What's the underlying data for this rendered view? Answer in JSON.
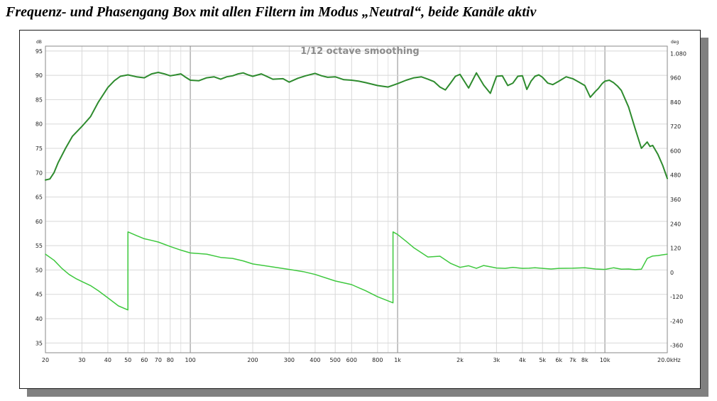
{
  "caption": "Frequenz- und Phasengang Box mit allen Filtern im Modus „Neutral“, beide Kanäle aktiv",
  "chart_data": {
    "type": "line",
    "title": "1/12 octave smoothing",
    "y_left_unit": "dB",
    "y_right_unit": "deg",
    "x_scale": "log",
    "xlim": [
      20,
      20000
    ],
    "ylim_left": [
      33,
      96
    ],
    "ylim_right": [
      -396,
      1116
    ],
    "grid": true,
    "x_ticks": [
      {
        "v": 20,
        "label": "20"
      },
      {
        "v": 30,
        "label": "30"
      },
      {
        "v": 40,
        "label": "40"
      },
      {
        "v": 50,
        "label": "50"
      },
      {
        "v": 60,
        "label": "60"
      },
      {
        "v": 70,
        "label": "70"
      },
      {
        "v": 80,
        "label": "80"
      },
      {
        "v": 100,
        "label": "100"
      },
      {
        "v": 200,
        "label": "200"
      },
      {
        "v": 300,
        "label": "300"
      },
      {
        "v": 400,
        "label": "400"
      },
      {
        "v": 500,
        "label": "500"
      },
      {
        "v": 600,
        "label": "600"
      },
      {
        "v": 800,
        "label": "800"
      },
      {
        "v": 1000,
        "label": "1k"
      },
      {
        "v": 2000,
        "label": "2k"
      },
      {
        "v": 3000,
        "label": "3k"
      },
      {
        "v": 4000,
        "label": "4k"
      },
      {
        "v": 5000,
        "label": "5k"
      },
      {
        "v": 6000,
        "label": "6k"
      },
      {
        "v": 7000,
        "label": "7k"
      },
      {
        "v": 8000,
        "label": "8k"
      },
      {
        "v": 10000,
        "label": "10k"
      },
      {
        "v": 20000,
        "label": "20.0kHz"
      }
    ],
    "x_minor_grid": [
      90,
      900,
      9000
    ],
    "y_left_ticks": [
      {
        "v": 35,
        "label": "35"
      },
      {
        "v": 40,
        "label": "40"
      },
      {
        "v": 45,
        "label": "45"
      },
      {
        "v": 50,
        "label": "50"
      },
      {
        "v": 55,
        "label": "55"
      },
      {
        "v": 60,
        "label": "60"
      },
      {
        "v": 65,
        "label": "65"
      },
      {
        "v": 70,
        "label": "70"
      },
      {
        "v": 75,
        "label": "75"
      },
      {
        "v": 80,
        "label": "80"
      },
      {
        "v": 85,
        "label": "85"
      },
      {
        "v": 90,
        "label": "90"
      },
      {
        "v": 95,
        "label": "95"
      }
    ],
    "y_right_ticks": [
      {
        "v": -360,
        "label": "-360"
      },
      {
        "v": -240,
        "label": "-240"
      },
      {
        "v": -120,
        "label": "-120"
      },
      {
        "v": 0,
        "label": "0"
      },
      {
        "v": 120,
        "label": "120"
      },
      {
        "v": 240,
        "label": "240"
      },
      {
        "v": 360,
        "label": "360"
      },
      {
        "v": 480,
        "label": "480"
      },
      {
        "v": 600,
        "label": "600"
      },
      {
        "v": 720,
        "label": "720"
      },
      {
        "v": 840,
        "label": "840"
      },
      {
        "v": 960,
        "label": "960"
      },
      {
        "v": 1080,
        "label": "1.080"
      }
    ],
    "series": [
      {
        "axis": "left",
        "color": "#2e8b2e",
        "x": [
          20,
          21,
          22,
          23,
          25,
          27,
          30,
          33,
          36,
          40,
          43,
          46,
          50,
          55,
          60,
          65,
          70,
          75,
          80,
          85,
          90,
          95,
          100,
          110,
          120,
          130,
          140,
          150,
          160,
          170,
          180,
          190,
          200,
          220,
          250,
          280,
          300,
          330,
          360,
          400,
          430,
          460,
          500,
          550,
          600,
          650,
          700,
          800,
          900,
          1000,
          1100,
          1200,
          1300,
          1400,
          1500,
          1600,
          1700,
          1800,
          1900,
          2000,
          2200,
          2400,
          2600,
          2800,
          3000,
          3200,
          3400,
          3600,
          3800,
          4000,
          4200,
          4400,
          4600,
          4800,
          5000,
          5300,
          5600,
          6000,
          6500,
          7000,
          7500,
          8000,
          8500,
          9000,
          9300,
          9700,
          10000,
          10500,
          11000,
          11500,
          12000,
          13000,
          14000,
          15000,
          16000,
          16500,
          17000,
          18000,
          19000,
          20000
        ],
        "y": [
          68.5,
          68.7,
          70,
          72,
          75,
          77.5,
          79.5,
          81.5,
          84.5,
          87.5,
          88.9,
          89.8,
          90.1,
          89.7,
          89.5,
          90.3,
          90.6,
          90.3,
          89.9,
          90.1,
          90.3,
          89.6,
          89.0,
          88.9,
          89.5,
          89.7,
          89.2,
          89.7,
          89.9,
          90.3,
          90.5,
          90.1,
          89.8,
          90.3,
          89.2,
          89.3,
          88.6,
          89.4,
          89.9,
          90.4,
          89.9,
          89.6,
          89.7,
          89.1,
          89.0,
          88.8,
          88.5,
          87.9,
          87.6,
          88.3,
          89.0,
          89.5,
          89.7,
          89.2,
          88.7,
          87.6,
          87.0,
          88.4,
          89.8,
          90.2,
          87.4,
          90.5,
          88.0,
          86.3,
          89.8,
          89.9,
          87.9,
          88.4,
          89.8,
          89.9,
          87.1,
          88.8,
          89.8,
          90.1,
          89.6,
          88.4,
          88.1,
          88.8,
          89.7,
          89.3,
          88.6,
          87.9,
          85.5,
          86.7,
          87.3,
          88.3,
          88.8,
          89.0,
          88.5,
          87.8,
          86.9,
          83.5,
          79.0,
          75.0,
          76.3,
          75.4,
          75.6,
          73.8,
          71.5,
          68.8
        ]
      },
      {
        "axis": "right",
        "color": "#3ec83e",
        "x": [
          20,
          22,
          24,
          26,
          28,
          30,
          33,
          36,
          40,
          45,
          50,
          50.01,
          55,
          60,
          65,
          70,
          80,
          90,
          100,
          120,
          140,
          160,
          180,
          200,
          250,
          300,
          350,
          400,
          500,
          600,
          700,
          800,
          900,
          950,
          950.01,
          1000,
          1100,
          1200,
          1400,
          1600,
          1800,
          2000,
          2200,
          2400,
          2600,
          2800,
          3000,
          3300,
          3600,
          4000,
          4300,
          4600,
          5000,
          5500,
          6000,
          7000,
          8000,
          9000,
          10000,
          11000,
          12000,
          13000,
          14000,
          15000,
          16000,
          17000,
          18000,
          19000,
          20000
        ],
        "y": [
          90,
          60,
          20,
          -10,
          -30,
          -45,
          -65,
          -90,
          -125,
          -165,
          -185,
          200,
          182,
          166,
          158,
          150,
          128,
          110,
          96,
          90,
          74,
          69,
          57,
          42,
          27,
          15,
          4,
          -10,
          -42,
          -60,
          -90,
          -120,
          -140,
          -150,
          200,
          187,
          153,
          121,
          76,
          80,
          45,
          25,
          33,
          20,
          34,
          28,
          22,
          20,
          25,
          20,
          21,
          23,
          20,
          17,
          20,
          21,
          23,
          17,
          15,
          23,
          16,
          17,
          14,
          16,
          69,
          81,
          83,
          87,
          90
        ]
      }
    ]
  }
}
